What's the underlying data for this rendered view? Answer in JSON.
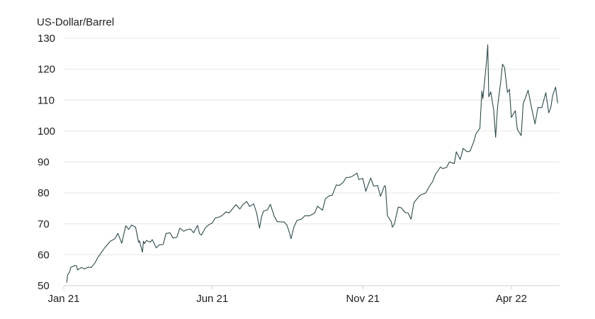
{
  "chart_data": {
    "type": "line",
    "title": "",
    "xlabel": "",
    "ylabel": "US-Dollar/Barrel",
    "ylim": [
      50,
      130
    ],
    "yticks": [
      50,
      60,
      70,
      80,
      90,
      100,
      110,
      120,
      130
    ],
    "xlim": [
      "2021-01-01",
      "2022-05-20"
    ],
    "xticks": [
      {
        "label": "Jan 21",
        "date": "2021-01-01"
      },
      {
        "label": "Jun 21",
        "date": "2021-06-01"
      },
      {
        "label": "Nov 21",
        "date": "2021-11-01"
      },
      {
        "label": "Apr 22",
        "date": "2022-04-01"
      }
    ],
    "grid": "horizontal",
    "legend": "none",
    "colors": {
      "line": "#2e4a4a",
      "grid": "#e6e6e6",
      "text": "#1f1f1f"
    },
    "series": [
      {
        "points": [
          [
            "2021-01-04",
            51.1
          ],
          [
            "2021-01-05",
            53.6
          ],
          [
            "2021-01-07",
            54.4
          ],
          [
            "2021-01-08",
            55.9
          ],
          [
            "2021-01-12",
            56.5
          ],
          [
            "2021-01-14",
            56.4
          ],
          [
            "2021-01-15",
            55.1
          ],
          [
            "2021-01-19",
            55.9
          ],
          [
            "2021-01-22",
            55.4
          ],
          [
            "2021-01-26",
            56.0
          ],
          [
            "2021-01-29",
            55.9
          ],
          [
            "2021-02-02",
            57.5
          ],
          [
            "2021-02-05",
            59.3
          ],
          [
            "2021-02-09",
            61.1
          ],
          [
            "2021-02-12",
            62.4
          ],
          [
            "2021-02-17",
            64.3
          ],
          [
            "2021-02-22",
            65.2
          ],
          [
            "2021-02-25",
            66.9
          ],
          [
            "2021-03-01",
            63.7
          ],
          [
            "2021-03-05",
            69.4
          ],
          [
            "2021-03-08",
            68.2
          ],
          [
            "2021-03-11",
            69.6
          ],
          [
            "2021-03-15",
            68.9
          ],
          [
            "2021-03-18",
            64.0
          ],
          [
            "2021-03-19",
            64.5
          ],
          [
            "2021-03-22",
            60.8
          ],
          [
            "2021-03-23",
            64.4
          ],
          [
            "2021-03-24",
            63.6
          ],
          [
            "2021-03-26",
            64.6
          ],
          [
            "2021-03-30",
            64.1
          ],
          [
            "2021-04-01",
            64.9
          ],
          [
            "2021-04-05",
            62.2
          ],
          [
            "2021-04-08",
            63.2
          ],
          [
            "2021-04-12",
            63.3
          ],
          [
            "2021-04-15",
            66.9
          ],
          [
            "2021-04-19",
            67.1
          ],
          [
            "2021-04-22",
            65.4
          ],
          [
            "2021-04-26",
            65.7
          ],
          [
            "2021-04-29",
            68.6
          ],
          [
            "2021-05-03",
            67.6
          ],
          [
            "2021-05-06",
            68.1
          ],
          [
            "2021-05-10",
            68.3
          ],
          [
            "2021-05-13",
            67.1
          ],
          [
            "2021-05-17",
            69.5
          ],
          [
            "2021-05-19",
            66.8
          ],
          [
            "2021-05-21",
            66.4
          ],
          [
            "2021-05-25",
            68.7
          ],
          [
            "2021-05-28",
            69.6
          ],
          [
            "2021-06-01",
            70.3
          ],
          [
            "2021-06-04",
            71.9
          ],
          [
            "2021-06-08",
            72.2
          ],
          [
            "2021-06-11",
            72.7
          ],
          [
            "2021-06-15",
            73.9
          ],
          [
            "2021-06-18",
            73.5
          ],
          [
            "2021-06-22",
            75.0
          ],
          [
            "2021-06-25",
            76.2
          ],
          [
            "2021-06-29",
            74.8
          ],
          [
            "2021-07-02",
            76.2
          ],
          [
            "2021-07-06",
            77.2
          ],
          [
            "2021-07-09",
            75.6
          ],
          [
            "2021-07-13",
            76.5
          ],
          [
            "2021-07-16",
            73.6
          ],
          [
            "2021-07-19",
            68.6
          ],
          [
            "2021-07-21",
            72.2
          ],
          [
            "2021-07-23",
            74.1
          ],
          [
            "2021-07-27",
            74.5
          ],
          [
            "2021-07-30",
            76.3
          ],
          [
            "2021-08-03",
            72.4
          ],
          [
            "2021-08-06",
            70.7
          ],
          [
            "2021-08-10",
            70.6
          ],
          [
            "2021-08-13",
            70.6
          ],
          [
            "2021-08-16",
            69.5
          ],
          [
            "2021-08-19",
            66.5
          ],
          [
            "2021-08-20",
            65.2
          ],
          [
            "2021-08-23",
            69.0
          ],
          [
            "2021-08-26",
            71.1
          ],
          [
            "2021-08-31",
            71.6
          ],
          [
            "2021-09-03",
            72.6
          ],
          [
            "2021-09-08",
            72.6
          ],
          [
            "2021-09-13",
            73.5
          ],
          [
            "2021-09-16",
            75.7
          ],
          [
            "2021-09-21",
            74.4
          ],
          [
            "2021-09-24",
            78.1
          ],
          [
            "2021-09-28",
            79.1
          ],
          [
            "2021-10-01",
            79.3
          ],
          [
            "2021-10-05",
            82.6
          ],
          [
            "2021-10-08",
            82.4
          ],
          [
            "2021-10-12",
            83.4
          ],
          [
            "2021-10-15",
            84.9
          ],
          [
            "2021-10-19",
            85.1
          ],
          [
            "2021-10-22",
            85.5
          ],
          [
            "2021-10-26",
            86.4
          ],
          [
            "2021-10-28",
            84.3
          ],
          [
            "2021-11-01",
            84.7
          ],
          [
            "2021-11-04",
            80.5
          ],
          [
            "2021-11-09",
            84.8
          ],
          [
            "2021-11-12",
            82.2
          ],
          [
            "2021-11-16",
            82.4
          ],
          [
            "2021-11-19",
            78.9
          ],
          [
            "2021-11-23",
            82.3
          ],
          [
            "2021-11-24",
            82.2
          ],
          [
            "2021-11-26",
            72.7
          ],
          [
            "2021-11-30",
            70.6
          ],
          [
            "2021-12-01",
            68.9
          ],
          [
            "2021-12-03",
            69.9
          ],
          [
            "2021-12-07",
            75.4
          ],
          [
            "2021-12-10",
            75.2
          ],
          [
            "2021-12-14",
            73.7
          ],
          [
            "2021-12-17",
            73.5
          ],
          [
            "2021-12-20",
            71.5
          ],
          [
            "2021-12-23",
            76.9
          ],
          [
            "2021-12-29",
            79.2
          ],
          [
            "2022-01-04",
            80.0
          ],
          [
            "2022-01-07",
            81.8
          ],
          [
            "2022-01-11",
            83.7
          ],
          [
            "2022-01-14",
            86.1
          ],
          [
            "2022-01-19",
            88.4
          ],
          [
            "2022-01-21",
            87.9
          ],
          [
            "2022-01-25",
            88.2
          ],
          [
            "2022-01-28",
            90.0
          ],
          [
            "2022-02-02",
            89.5
          ],
          [
            "2022-02-04",
            93.3
          ],
          [
            "2022-02-08",
            90.8
          ],
          [
            "2022-02-11",
            94.4
          ],
          [
            "2022-02-15",
            93.3
          ],
          [
            "2022-02-18",
            93.5
          ],
          [
            "2022-02-22",
            96.8
          ],
          [
            "2022-02-24",
            99.1
          ],
          [
            "2022-02-28",
            100.9
          ],
          [
            "2022-03-02",
            112.9
          ],
          [
            "2022-03-03",
            110.5
          ],
          [
            "2022-03-07",
            123.2
          ],
          [
            "2022-03-08",
            127.9
          ],
          [
            "2022-03-09",
            111.1
          ],
          [
            "2022-03-11",
            112.7
          ],
          [
            "2022-03-14",
            106.9
          ],
          [
            "2022-03-16",
            98.0
          ],
          [
            "2022-03-18",
            107.9
          ],
          [
            "2022-03-21",
            115.6
          ],
          [
            "2022-03-23",
            121.6
          ],
          [
            "2022-03-25",
            120.6
          ],
          [
            "2022-03-28",
            112.5
          ],
          [
            "2022-03-30",
            113.5
          ],
          [
            "2022-04-01",
            104.4
          ],
          [
            "2022-04-05",
            106.6
          ],
          [
            "2022-04-07",
            100.6
          ],
          [
            "2022-04-11",
            98.5
          ],
          [
            "2022-04-13",
            108.8
          ],
          [
            "2022-04-18",
            113.2
          ],
          [
            "2022-04-21",
            108.3
          ],
          [
            "2022-04-25",
            102.3
          ],
          [
            "2022-04-28",
            107.6
          ],
          [
            "2022-05-02",
            107.6
          ],
          [
            "2022-05-04",
            110.1
          ],
          [
            "2022-05-06",
            112.4
          ],
          [
            "2022-05-09",
            105.9
          ],
          [
            "2022-05-11",
            107.5
          ],
          [
            "2022-05-13",
            111.6
          ],
          [
            "2022-05-16",
            114.2
          ],
          [
            "2022-05-18",
            109.1
          ]
        ]
      }
    ]
  }
}
